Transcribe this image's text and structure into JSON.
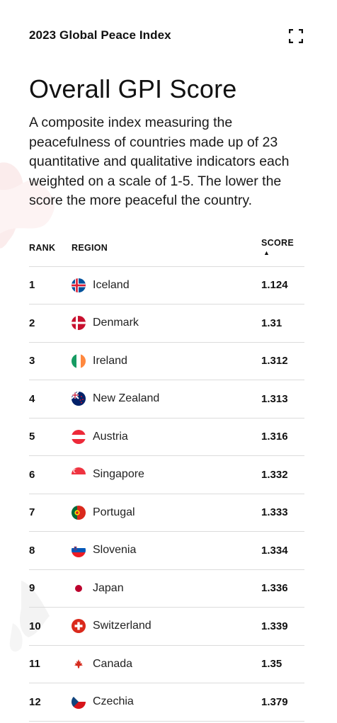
{
  "header": {
    "brand": "2023 Global Peace Index",
    "expand_icon": "expand-fullscreen-icon"
  },
  "title": "Overall GPI Score",
  "description": "A composite index measuring the peacefulness of countries made up of 23 quantitative and qualitative indicators each weighted on a scale of 1-5. The lower the score the more peaceful the country.",
  "table": {
    "columns": {
      "rank": "RANK",
      "region": "REGION",
      "score": "SCORE",
      "score_sort": "▲"
    },
    "rows": [
      {
        "rank": "1",
        "region": "Iceland",
        "score": "1.124",
        "flag": "iceland-flag-icon"
      },
      {
        "rank": "2",
        "region": "Denmark",
        "score": "1.31",
        "flag": "denmark-flag-icon"
      },
      {
        "rank": "3",
        "region": "Ireland",
        "score": "1.312",
        "flag": "ireland-flag-icon"
      },
      {
        "rank": "4",
        "region": "New Zealand",
        "score": "1.313",
        "flag": "new-zealand-flag-icon"
      },
      {
        "rank": "5",
        "region": "Austria",
        "score": "1.316",
        "flag": "austria-flag-icon"
      },
      {
        "rank": "6",
        "region": "Singapore",
        "score": "1.332",
        "flag": "singapore-flag-icon"
      },
      {
        "rank": "7",
        "region": "Portugal",
        "score": "1.333",
        "flag": "portugal-flag-icon"
      },
      {
        "rank": "8",
        "region": "Slovenia",
        "score": "1.334",
        "flag": "slovenia-flag-icon"
      },
      {
        "rank": "9",
        "region": "Japan",
        "score": "1.336",
        "flag": "japan-flag-icon"
      },
      {
        "rank": "10",
        "region": "Switzerland",
        "score": "1.339",
        "flag": "switzerland-flag-icon"
      },
      {
        "rank": "11",
        "region": "Canada",
        "score": "1.35",
        "flag": "canada-flag-icon"
      },
      {
        "rank": "12",
        "region": "Czechia",
        "score": "1.379",
        "flag": "czechia-flag-icon"
      }
    ]
  },
  "colors": {
    "text": "#111111",
    "divider": "#dcdcdc",
    "map_background": "#fbeeee"
  }
}
